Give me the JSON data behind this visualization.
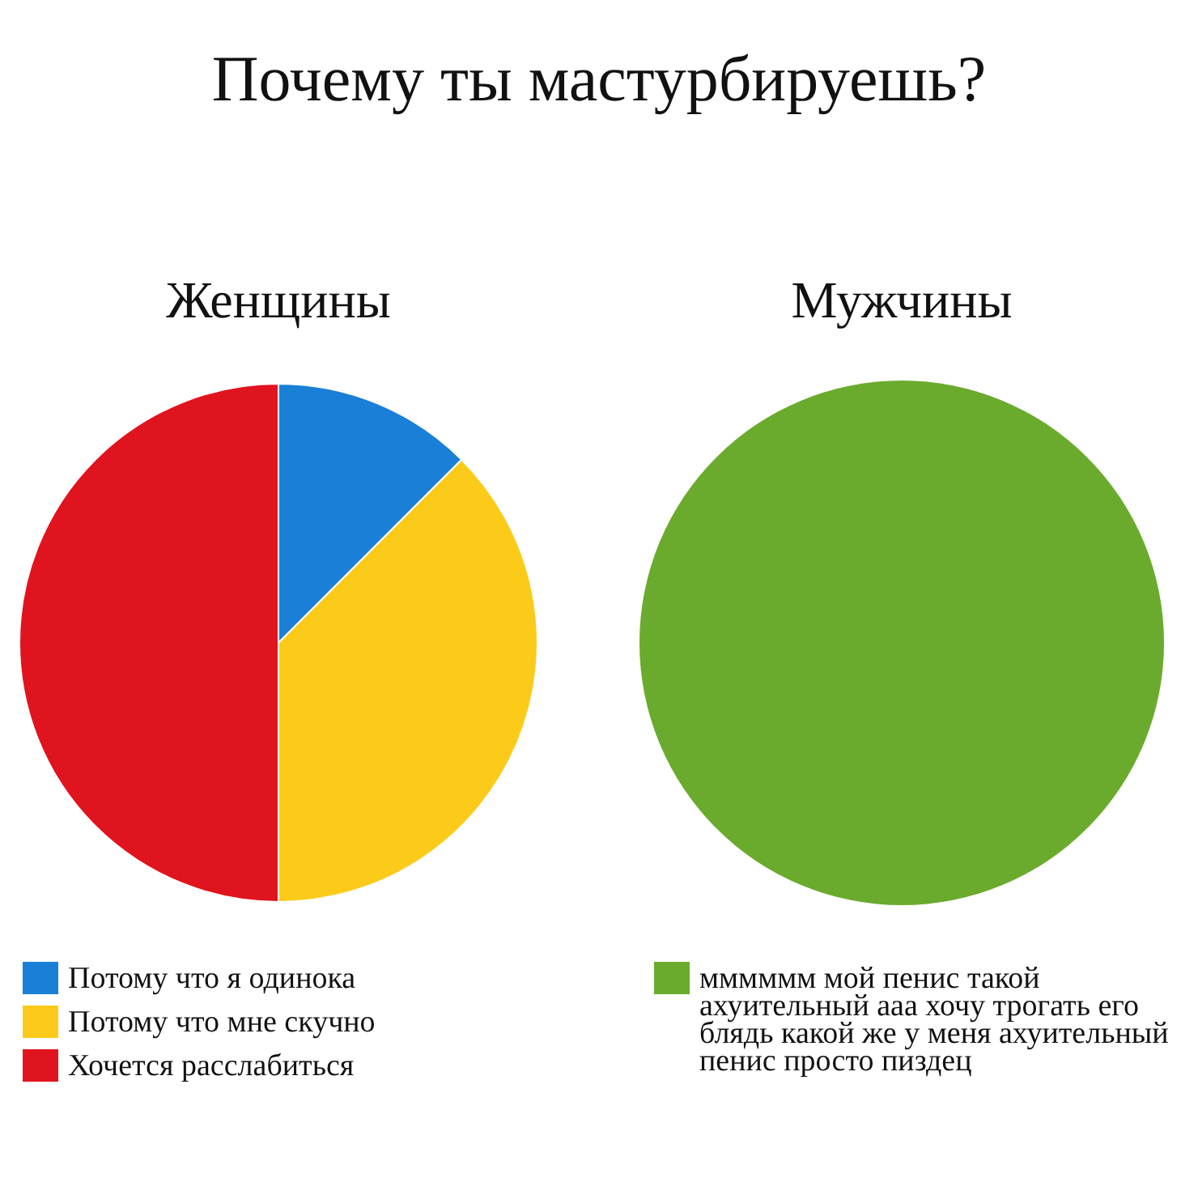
{
  "chart_data": [
    {
      "type": "pie",
      "title": "Почему ты мастурбируешь?",
      "subtitle": "Женщины",
      "categories": [
        "Потому что я одинока",
        "Потому что мне скучно",
        "Хочется расслабиться"
      ],
      "values": [
        12.5,
        37.5,
        50
      ],
      "colors": [
        "#1a7fd6",
        "#fccb1a",
        "#e0141e"
      ],
      "legend": "bottom"
    },
    {
      "type": "pie",
      "title": "Мужчины",
      "categories": [
        "мммммм мой пенис такой ахуительный ааа хочу трогать его блядь какой же у меня ахуительный пенис просто пиздец"
      ],
      "values": [
        100
      ],
      "colors": [
        "#6aab2e"
      ],
      "legend": "bottom"
    }
  ]
}
